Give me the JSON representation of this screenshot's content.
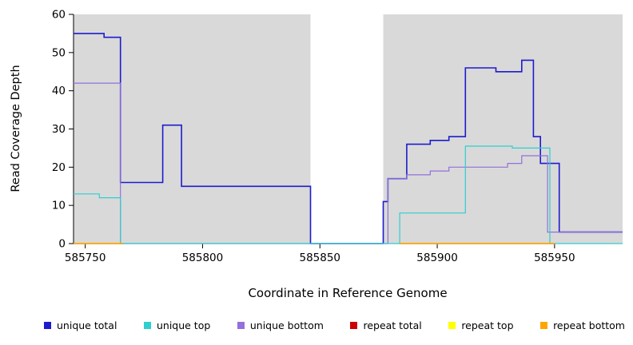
{
  "figure": {
    "background": "#ffffff"
  },
  "chart_data": {
    "type": "line",
    "title": "",
    "xlabel": "Coordinate in Reference Genome",
    "ylabel": "Read Coverage Depth",
    "xlim": [
      585745,
      585979
    ],
    "ylim": [
      0,
      60
    ],
    "xticks": [
      585750,
      585800,
      585850,
      585900,
      585950
    ],
    "yticks": [
      0,
      10,
      20,
      30,
      40,
      50,
      60
    ],
    "plot_bg": "#d9d9d9",
    "mask_region": {
      "x0": 585846,
      "x1": 585877,
      "color": "#ffffff"
    },
    "draw_order": [
      0,
      2,
      1,
      3,
      4,
      5
    ],
    "series": [
      {
        "name": "unique total",
        "color": "#1c1ccd",
        "width": 1.6,
        "segments": [
          [
            [
              585745,
              55
            ],
            [
              585758,
              55
            ],
            [
              585758,
              54
            ],
            [
              585765,
              54
            ],
            [
              585765,
              16
            ],
            [
              585783,
              16
            ],
            [
              585783,
              31
            ],
            [
              585791,
              31
            ],
            [
              585791,
              15
            ],
            [
              585846,
              15
            ],
            [
              585846,
              0
            ],
            [
              585877,
              0
            ],
            [
              585877,
              11
            ],
            [
              585879,
              11
            ],
            [
              585879,
              17
            ],
            [
              585887,
              17
            ],
            [
              585887,
              26
            ],
            [
              585897,
              26
            ],
            [
              585897,
              27
            ],
            [
              585905,
              27
            ],
            [
              585905,
              28
            ],
            [
              585912,
              28
            ],
            [
              585912,
              46
            ],
            [
              585925,
              46
            ],
            [
              585925,
              45
            ],
            [
              585936,
              45
            ],
            [
              585936,
              48
            ],
            [
              585941,
              48
            ],
            [
              585941,
              28
            ],
            [
              585944,
              28
            ],
            [
              585944,
              21
            ],
            [
              585952,
              21
            ],
            [
              585952,
              3
            ],
            [
              585979,
              3
            ]
          ]
        ]
      },
      {
        "name": "unique top",
        "color": "#2fcfcf",
        "width": 1.2,
        "segments": [
          [
            [
              585745,
              13
            ],
            [
              585756,
              13
            ],
            [
              585756,
              12
            ],
            [
              585765,
              12
            ],
            [
              585765,
              0
            ],
            [
              585884,
              0
            ],
            [
              585884,
              8
            ],
            [
              585912,
              8
            ],
            [
              585912,
              25.5
            ],
            [
              585932,
              25.5
            ],
            [
              585932,
              25
            ],
            [
              585948,
              25
            ],
            [
              585948,
              0
            ],
            [
              585979,
              0
            ]
          ]
        ]
      },
      {
        "name": "unique bottom",
        "color": "#9370DB",
        "width": 1.2,
        "segments": [
          [
            [
              585745,
              42
            ],
            [
              585765,
              42
            ],
            [
              585765,
              0
            ],
            [
              585879,
              0
            ],
            [
              585879,
              17
            ],
            [
              585887,
              17
            ],
            [
              585887,
              18
            ],
            [
              585897,
              18
            ],
            [
              585897,
              19
            ],
            [
              585905,
              19
            ],
            [
              585905,
              20
            ],
            [
              585930,
              20
            ],
            [
              585930,
              21
            ],
            [
              585936,
              21
            ],
            [
              585936,
              23
            ],
            [
              585947,
              23
            ],
            [
              585947,
              3
            ],
            [
              585979,
              3
            ]
          ]
        ]
      },
      {
        "name": "repeat total",
        "color": "#CC0000",
        "width": 1.2,
        "segments": [
          [
            [
              585745,
              0
            ],
            [
              585766,
              0
            ]
          ],
          [
            [
              585884,
              0
            ],
            [
              585950,
              0
            ]
          ]
        ]
      },
      {
        "name": "repeat top",
        "color": "#FFFF00",
        "width": 1.2,
        "segments": [
          [
            [
              585745,
              0
            ],
            [
              585766,
              0
            ]
          ],
          [
            [
              585884,
              0
            ],
            [
              585950,
              0
            ]
          ]
        ]
      },
      {
        "name": "repeat bottom",
        "color": "#FFA500",
        "width": 1.4,
        "segments": [
          [
            [
              585745,
              0
            ],
            [
              585766,
              0
            ]
          ],
          [
            [
              585884,
              0
            ],
            [
              585950,
              0
            ]
          ]
        ]
      }
    ]
  }
}
